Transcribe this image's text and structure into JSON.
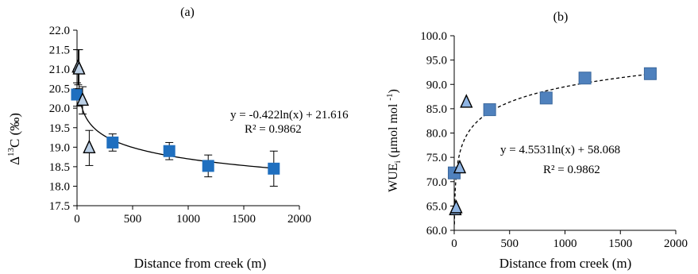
{
  "chart_data": [
    {
      "panel": "(a)",
      "type": "scatter",
      "xlabel": "Distance from creek (m)",
      "ylabel_prefix": "Δ",
      "ylabel_sup": "13",
      "ylabel_suffix": "C (‰)",
      "xlim": [
        0,
        2000
      ],
      "ylim": [
        17.5,
        22.0
      ],
      "x_ticks": [
        0,
        500,
        1000,
        1500,
        2000
      ],
      "x_tick_labels": [
        "0",
        "500",
        "1000",
        "1500",
        "2000"
      ],
      "y_ticks": [
        17.5,
        18.0,
        18.5,
        19.0,
        19.5,
        20.0,
        20.5,
        21.0,
        21.5,
        22.0
      ],
      "y_tick_labels": [
        "17.5",
        "18.0",
        "18.5",
        "19.0",
        "19.5",
        "20.0",
        "20.5",
        "21.0",
        "21.5",
        "22.0"
      ],
      "grid": false,
      "series": [
        {
          "marker": "square",
          "color": "#1f6fbf",
          "points": [
            {
              "x": 0,
              "y": 20.35,
              "err": 0.3
            },
            {
              "x": 320,
              "y": 19.12,
              "err": 0.22
            },
            {
              "x": 830,
              "y": 18.9,
              "err": 0.22
            },
            {
              "x": 1180,
              "y": 18.52,
              "err": 0.28
            },
            {
              "x": 1770,
              "y": 18.45,
              "err": 0.45
            }
          ]
        },
        {
          "marker": "triangle",
          "color": "#bcd0e6",
          "points": [
            {
              "x": 10,
              "y": 21.05,
              "err": 0.45
            },
            {
              "x": 18,
              "y": 21.0,
              "err": 0.5
            },
            {
              "x": 50,
              "y": 20.2,
              "err": 0.35
            },
            {
              "x": 110,
              "y": 18.98,
              "err": 0.45
            }
          ]
        }
      ],
      "trendline": {
        "a": -0.422,
        "b": 21.616,
        "style": "solid",
        "x_from": 25,
        "x_to": 1770
      },
      "equation": "y = -0.422ln(x) + 21.616",
      "r2": "R² = 0.9862"
    },
    {
      "panel": "(b)",
      "type": "scatter",
      "xlabel": "Distance from creek  (m)",
      "ylabel_prefix": "WUE",
      "ylabel_sub": "i",
      "ylabel_suffix": " (μmol mol ",
      "ylabel_sup": "-1",
      "ylabel_close": ")",
      "xlim": [
        0,
        2000
      ],
      "ylim": [
        60.0,
        100.0
      ],
      "x_ticks": [
        0,
        500,
        1000,
        1500,
        2000
      ],
      "x_tick_labels": [
        "0",
        "500",
        "1000",
        "1500",
        "2000"
      ],
      "y_ticks": [
        60,
        65,
        70,
        75,
        80,
        85,
        90,
        95,
        100
      ],
      "y_tick_labels": [
        "60.0",
        "65.0",
        "70.0",
        "75.0",
        "80.0",
        "85.0",
        "90.0",
        "95.0",
        "100.0"
      ],
      "grid": false,
      "series": [
        {
          "marker": "square",
          "color": "#4f81bd",
          "points": [
            {
              "x": 0,
              "y": 71.8
            },
            {
              "x": 320,
              "y": 84.8
            },
            {
              "x": 830,
              "y": 87.2
            },
            {
              "x": 1180,
              "y": 91.3
            },
            {
              "x": 1770,
              "y": 92.2
            }
          ]
        },
        {
          "marker": "triangle",
          "color": "#8eb4e3",
          "points": [
            {
              "x": 10,
              "y": 64.2
            },
            {
              "x": 18,
              "y": 64.6
            },
            {
              "x": 50,
              "y": 72.8
            },
            {
              "x": 110,
              "y": 86.3
            }
          ]
        }
      ],
      "trendline": {
        "a": 4.5531,
        "b": 58.068,
        "style": "dashed",
        "x_from": 2,
        "x_to": 1770
      },
      "equation": "y = 4.5531ln(x) + 58.068",
      "r2": "R² = 0.9862"
    }
  ]
}
